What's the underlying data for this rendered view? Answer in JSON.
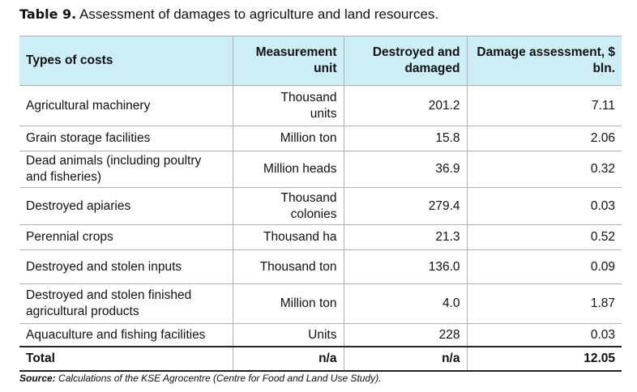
{
  "title": {
    "label": "Table 9.",
    "text": "Assessment of damages to agriculture and land resources."
  },
  "table": {
    "header": [
      "Types of costs",
      "Measurement unit",
      "Destroyed and damaged",
      "Damage assessment, $ bln."
    ],
    "rows": [
      [
        "Agricultural machinery",
        "Thousand units",
        "201.2",
        "7.11"
      ],
      [
        "Grain storage facilities",
        "Million ton",
        "15.8",
        "2.06"
      ],
      [
        "Dead animals (including poultry and fisheries)",
        "Million heads",
        "36.9",
        "0.32"
      ],
      [
        "Destroyed apiaries",
        "Thousand colonies",
        "279.4",
        "0.03"
      ],
      [
        "Perennial crops",
        "Thousand ha",
        "21.3",
        "0.52"
      ],
      [
        "Destroyed and stolen inputs",
        "Thousand ton",
        "136.0",
        "0.09"
      ],
      [
        "Destroyed and stolen finished agricultural products",
        "Million ton",
        "4.0",
        "1.87"
      ],
      [
        "Aquaculture and fishing facilities",
        "Units",
        "228",
        "0.03"
      ]
    ],
    "total": [
      "Total",
      "n/a",
      "n/a",
      "12.05"
    ]
  },
  "source": {
    "label": "Source:",
    "text": "Calculations of the KSE Agrocentre (Centre for Food and Land Use Study)."
  }
}
